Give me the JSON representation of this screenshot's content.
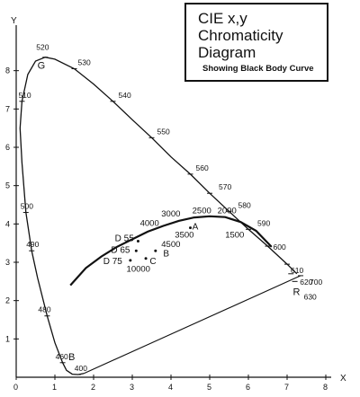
{
  "chart_data": {
    "type": "line",
    "title_lines": [
      "CIE x,y",
      "Chromaticity",
      "Diagram"
    ],
    "subtitle": "Showing Black Body Curve",
    "xlabel": "X",
    "ylabel": "Y",
    "xlim": [
      0,
      8
    ],
    "ylim": [
      0,
      9
    ],
    "x_ticks": [
      {
        "v": 0,
        "label": "0"
      },
      {
        "v": 1,
        "label": "1"
      },
      {
        "v": 2,
        "label": "2"
      },
      {
        "v": 3,
        "label": "3"
      },
      {
        "v": 4,
        "label": "4"
      },
      {
        "v": 5,
        "label": "5"
      },
      {
        "v": 6,
        "label": "6"
      },
      {
        "v": 7,
        "label": "7"
      },
      {
        "v": 8,
        "label": "8"
      }
    ],
    "y_ticks": [
      {
        "v": 1,
        "label": "1"
      },
      {
        "v": 2,
        "label": "2"
      },
      {
        "v": 3,
        "label": "3"
      },
      {
        "v": 4,
        "label": "4"
      },
      {
        "v": 5,
        "label": "5"
      },
      {
        "v": 6,
        "label": "6"
      },
      {
        "v": 7,
        "label": "7"
      },
      {
        "v": 8,
        "label": "8"
      }
    ],
    "spectral_locus": [
      [
        1.75,
        0.1
      ],
      [
        1.6,
        0.07
      ],
      [
        1.45,
        0.08
      ],
      [
        1.3,
        0.18
      ],
      [
        1.2,
        0.38
      ],
      [
        1.0,
        0.9
      ],
      [
        0.8,
        1.6
      ],
      [
        0.55,
        2.6
      ],
      [
        0.4,
        3.3
      ],
      [
        0.25,
        4.3
      ],
      [
        0.15,
        5.6
      ],
      [
        0.1,
        6.5
      ],
      [
        0.15,
        7.2
      ],
      [
        0.3,
        7.9
      ],
      [
        0.5,
        8.25
      ],
      [
        0.75,
        8.35
      ],
      [
        1.0,
        8.3
      ],
      [
        1.5,
        8.05
      ],
      [
        2.0,
        7.65
      ],
      [
        2.5,
        7.2
      ],
      [
        3.0,
        6.72
      ],
      [
        3.5,
        6.25
      ],
      [
        4.0,
        5.75
      ],
      [
        4.5,
        5.3
      ],
      [
        5.0,
        4.8
      ],
      [
        5.5,
        4.33
      ],
      [
        6.0,
        3.86
      ],
      [
        6.5,
        3.42
      ],
      [
        7.0,
        2.95
      ],
      [
        7.25,
        2.7
      ]
    ],
    "purple_line": [
      [
        1.75,
        0.1
      ],
      [
        7.35,
        2.65
      ]
    ],
    "blackbody_curve": [
      [
        1.4,
        2.4
      ],
      [
        1.8,
        2.85
      ],
      [
        2.2,
        3.15
      ],
      [
        2.6,
        3.4
      ],
      [
        3.0,
        3.6
      ],
      [
        3.4,
        3.8
      ],
      [
        3.8,
        3.95
      ],
      [
        4.2,
        4.08
      ],
      [
        4.6,
        4.17
      ],
      [
        5.0,
        4.2
      ],
      [
        5.4,
        4.18
      ],
      [
        5.8,
        4.05
      ],
      [
        6.2,
        3.82
      ],
      [
        6.6,
        3.4
      ]
    ],
    "wavelength_labels": [
      {
        "label": "400",
        "x": 1.6,
        "y": 0.07,
        "dx": -4,
        "dy": -4
      },
      {
        "label": "460",
        "x": 1.2,
        "y": 0.38,
        "dx": -8,
        "dy": -4
      },
      {
        "label": "480",
        "x": 0.8,
        "y": 1.6,
        "dx": -10,
        "dy": -4
      },
      {
        "label": "490",
        "x": 0.4,
        "y": 3.3,
        "dx": -6,
        "dy": -4
      },
      {
        "label": "500",
        "x": 0.25,
        "y": 4.3,
        "dx": -6,
        "dy": -4
      },
      {
        "label": "510",
        "x": 0.15,
        "y": 7.2,
        "dx": -4,
        "dy": -4
      },
      {
        "label": "520",
        "x": 0.75,
        "y": 8.35,
        "dx": -10,
        "dy": -8
      },
      {
        "label": "530",
        "x": 1.5,
        "y": 8.05,
        "dx": 4,
        "dy": -4
      },
      {
        "label": "540",
        "x": 2.5,
        "y": 7.2,
        "dx": 6,
        "dy": -4
      },
      {
        "label": "550",
        "x": 3.5,
        "y": 6.25,
        "dx": 6,
        "dy": -4
      },
      {
        "label": "560",
        "x": 4.5,
        "y": 5.3,
        "dx": 6,
        "dy": -4
      },
      {
        "label": "570",
        "x": 5.0,
        "y": 4.8,
        "dx": 10,
        "dy": -4
      },
      {
        "label": "580",
        "x": 5.5,
        "y": 4.33,
        "dx": 10,
        "dy": -4
      },
      {
        "label": "590",
        "x": 6.0,
        "y": 3.86,
        "dx": 10,
        "dy": -4
      },
      {
        "label": "600",
        "x": 6.5,
        "y": 3.42,
        "dx": 6,
        "dy": 4
      },
      {
        "label": "610",
        "x": 7.0,
        "y": 2.95,
        "dx": 4,
        "dy": 10
      },
      {
        "label": "620",
        "x": 7.1,
        "y": 2.7,
        "dx": 10,
        "dy": 12
      },
      {
        "label": "630",
        "x": 7.2,
        "y": 2.5,
        "dx": 10,
        "dy": 20
      },
      {
        "label": "700",
        "x": 7.35,
        "y": 2.65,
        "dx": 10,
        "dy": 10
      }
    ],
    "temperature_labels": [
      {
        "label": "10000",
        "x": 2.85,
        "y": 2.75
      },
      {
        "label": "4500",
        "x": 3.75,
        "y": 3.4
      },
      {
        "label": "4000",
        "x": 3.2,
        "y": 3.95
      },
      {
        "label": "3500",
        "x": 4.1,
        "y": 3.65
      },
      {
        "label": "3000",
        "x": 3.75,
        "y": 4.2
      },
      {
        "label": "2500",
        "x": 4.55,
        "y": 4.28
      },
      {
        "label": "2000",
        "x": 5.2,
        "y": 4.28
      },
      {
        "label": "1500",
        "x": 5.4,
        "y": 3.65
      }
    ],
    "illuminants": [
      {
        "label": "D 55",
        "x": 3.15,
        "y": 3.55,
        "label_x": 2.55,
        "label_y": 3.55
      },
      {
        "label": "D 65",
        "x": 3.1,
        "y": 3.3,
        "label_x": 2.45,
        "label_y": 3.25
      },
      {
        "label": "D 75",
        "x": 2.95,
        "y": 3.05,
        "label_x": 2.25,
        "label_y": 2.95
      },
      {
        "label": "C",
        "x": 3.35,
        "y": 3.1,
        "label_x": 3.45,
        "label_y": 2.95
      },
      {
        "label": "B",
        "x": 3.6,
        "y": 3.3,
        "label_x": 3.8,
        "label_y": 3.15
      },
      {
        "label": "A",
        "x": 4.5,
        "y": 3.9,
        "label_x": 4.55,
        "label_y": 3.85
      }
    ],
    "region_labels": [
      {
        "label": "G",
        "x": 0.55,
        "y": 8.05
      },
      {
        "label": "B",
        "x": 1.35,
        "y": 0.45
      },
      {
        "label": "R",
        "x": 7.15,
        "y": 2.15
      }
    ]
  }
}
